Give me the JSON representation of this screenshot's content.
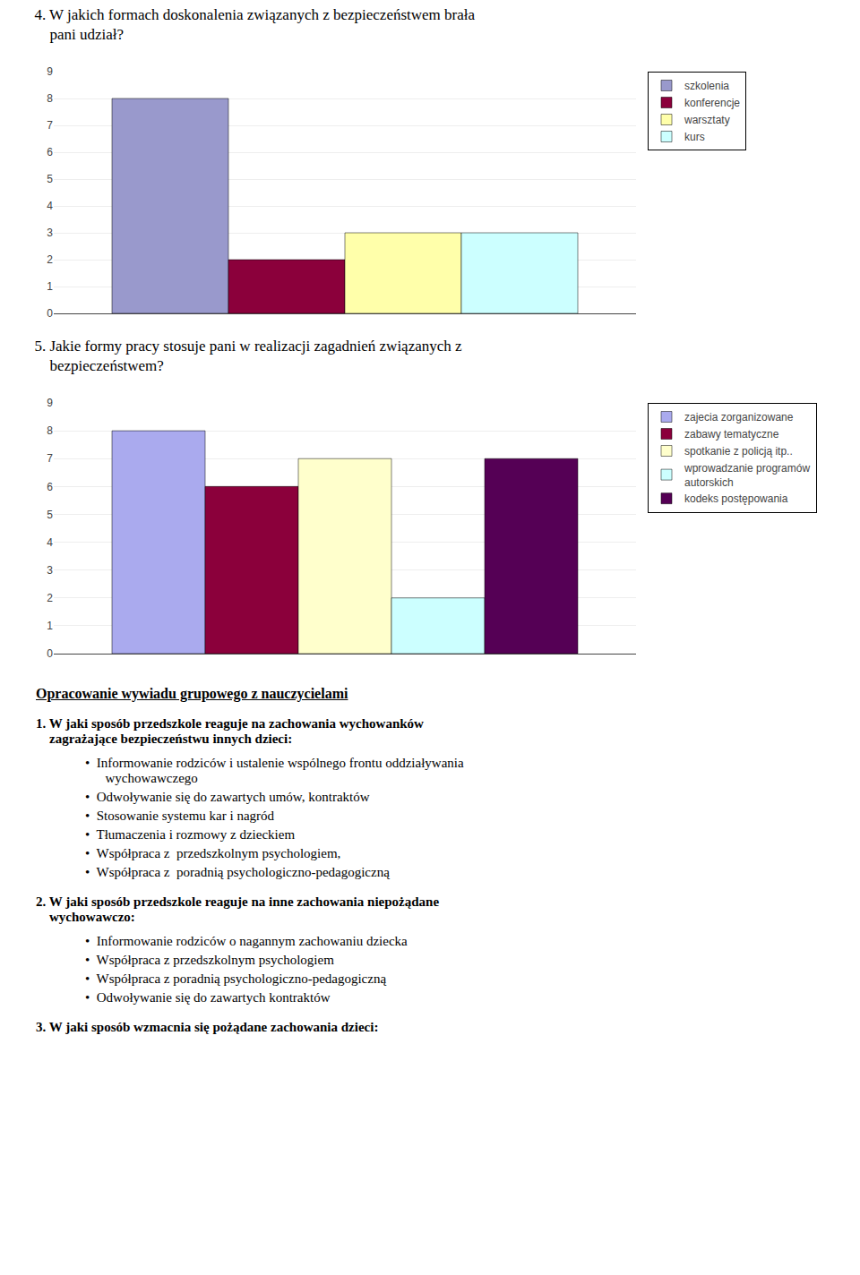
{
  "chart_data": [
    {
      "type": "bar",
      "title": "4. W jakich formach doskonalenia związanych z bezpieczeństwem brała\n    pani udział?",
      "categories": [
        null
      ],
      "series": [
        {
          "name": "szkolenia",
          "color": "#9999cc",
          "values": [
            8
          ]
        },
        {
          "name": "konferencje",
          "color": "#8b003b",
          "values": [
            2
          ]
        },
        {
          "name": "warsztaty",
          "color": "#ffffaa",
          "values": [
            3
          ]
        },
        {
          "name": "kurs",
          "color": "#ccffff",
          "values": [
            3
          ]
        }
      ],
      "ylim": [
        0,
        9
      ],
      "yticks": [
        0,
        1,
        2,
        3,
        4,
        5,
        6,
        7,
        8,
        9
      ],
      "grid": true,
      "legend": "right",
      "tick_labels": "y"
    },
    {
      "type": "bar",
      "title": "5. Jakie formy pracy stosuje pani w realizacji zagadnień związanych z\n    bezpieczeństwem?",
      "categories": [
        null
      ],
      "series": [
        {
          "name": "zajecia zorganizowane",
          "color": "#aaaaee",
          "values": [
            8
          ]
        },
        {
          "name": "zabawy tematyczne",
          "color": "#8b003b",
          "values": [
            6
          ]
        },
        {
          "name": "spotkanie z policją itp..",
          "color": "#ffffcc",
          "values": [
            7
          ]
        },
        {
          "name": "wprowadzanie programów\nautorskich",
          "color": "#ccffff",
          "values": [
            2
          ]
        },
        {
          "name": "kodeks postępowania",
          "color": "#550055",
          "values": [
            7
          ]
        }
      ],
      "ylim": [
        0,
        9
      ],
      "yticks": [
        0,
        1,
        2,
        3,
        4,
        5,
        6,
        7,
        8,
        9
      ],
      "grid": true,
      "legend": "right",
      "tick_labels": "y"
    }
  ],
  "annotations": [
    "Opracowanie wywiadu grupowego z nauczycielami",
    "1. W jaki sposób przedszkole reaguje na zachowania wychowanków\n    zagrażające bezpieczeństwu innych dzieci:",
    "•  Informowanie rodziców i ustalenie wspólnego frontu oddziaływania\n      wychowawczego",
    "•  Odwoływanie się do zawartych umów, kontraktów",
    "•  Stosowanie systemu kar i nagród",
    "•  Tłumaczenia i rozmowy z dzieckiem",
    "•  Współpraca z  przedszkolnym psychologiem,",
    "•  Współpraca z  poradnią psychologiczno-pedagogiczną",
    "2. W jaki sposób przedszkole reaguje na inne zachowania niepożądane\n    wychowawczo:",
    "•  Informowanie rodziców o nagannym zachowaniu dziecka",
    "•  Współpraca z przedszkolnym psychologiem",
    "•  Współpraca z poradnią psychologiczno-pedagogiczną",
    "•  Odwoływanie się do zawartych kontraktów",
    "3. W jaki sposób wzmacnia się pożądane zachowania dzieci:"
  ]
}
